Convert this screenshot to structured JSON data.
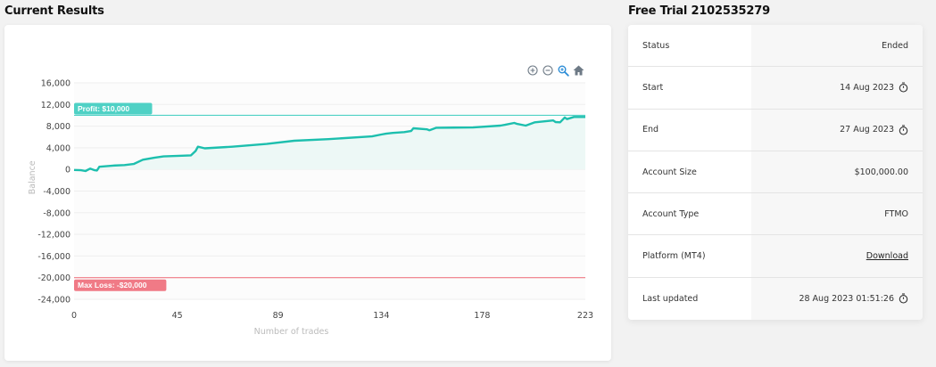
{
  "results": {
    "title": "Current Results"
  },
  "trial": {
    "title": "Free Trial 2102535279",
    "rows": [
      {
        "label": "Status",
        "value": "Ended",
        "icon": null
      },
      {
        "label": "Start",
        "value": "14 Aug 2023",
        "icon": "stopwatch-icon"
      },
      {
        "label": "End",
        "value": "27 Aug 2023",
        "icon": "stopwatch-icon"
      },
      {
        "label": "Account Size",
        "value": "$100,000.00",
        "icon": null
      },
      {
        "label": "Account Type",
        "value": "FTMO",
        "icon": null
      },
      {
        "label": "Platform (MT4)",
        "value": "Download",
        "icon": null,
        "link": true
      },
      {
        "label": "Last updated",
        "value": "28 Aug 2023 01:51:26",
        "icon": "stopwatch-icon"
      }
    ]
  },
  "toolbar": {
    "icons": [
      "zoom-in-icon",
      "zoom-out-icon",
      "zoom-select-icon",
      "home-reset-icon"
    ],
    "active_color": "#2a8bd6",
    "icon_color": "#6e7a86"
  },
  "colors": {
    "line": "#1dbfae",
    "fill": "#edf8f6",
    "profit": "#4fd1c5",
    "loss": "#f07a86",
    "grid": "#eeeeee",
    "axis_text": "#444444",
    "axis_title": "#bbbbbb"
  },
  "chart_data": {
    "type": "area",
    "title": "",
    "xlabel": "Number of trades",
    "ylabel": "Balance",
    "xlim": [
      0,
      223
    ],
    "ylim": [
      -24000,
      16000
    ],
    "x_ticks": [
      0,
      45,
      89,
      134,
      178,
      223
    ],
    "y_ticks": [
      16000,
      12000,
      8000,
      4000,
      0,
      -4000,
      -8000,
      -12000,
      -16000,
      -20000,
      -24000
    ],
    "y_tick_labels": [
      "16,000",
      "12,000",
      "8,000",
      "4,000",
      "0",
      "-4,000",
      "-8,000",
      "-12,000",
      "-16,000",
      "-20,000",
      "-24,000"
    ],
    "grid": true,
    "annotations": [
      {
        "type": "hline",
        "y": 10000,
        "label": "Profit: $10,000",
        "color": "#4fd1c5"
      },
      {
        "type": "hline",
        "y": -20000,
        "label": "Max Loss: -$20,000",
        "color": "#f07a86"
      }
    ],
    "series": [
      {
        "name": "Balance",
        "x": [
          0,
          3,
          5,
          7,
          9,
          10,
          11,
          17,
          22,
          24,
          26,
          30,
          35,
          39,
          51,
          53,
          54,
          57,
          69,
          84,
          96,
          111,
          130,
          134,
          136,
          139,
          144,
          147,
          148,
          154,
          155,
          158,
          174,
          186,
          188,
          192,
          193,
          197,
          201,
          209,
          210,
          212,
          214,
          215,
          218,
          223
        ],
        "y": [
          -100,
          -150,
          -300,
          150,
          -150,
          -200,
          500,
          700,
          800,
          900,
          1000,
          1800,
          2150,
          2400,
          2600,
          3400,
          4200,
          3900,
          4200,
          4700,
          5300,
          5600,
          6100,
          6450,
          6600,
          6750,
          6900,
          7100,
          7600,
          7400,
          7250,
          7700,
          7750,
          8100,
          8250,
          8600,
          8450,
          8100,
          8700,
          9050,
          8750,
          8700,
          9600,
          9300,
          9700,
          9700
        ]
      }
    ]
  }
}
